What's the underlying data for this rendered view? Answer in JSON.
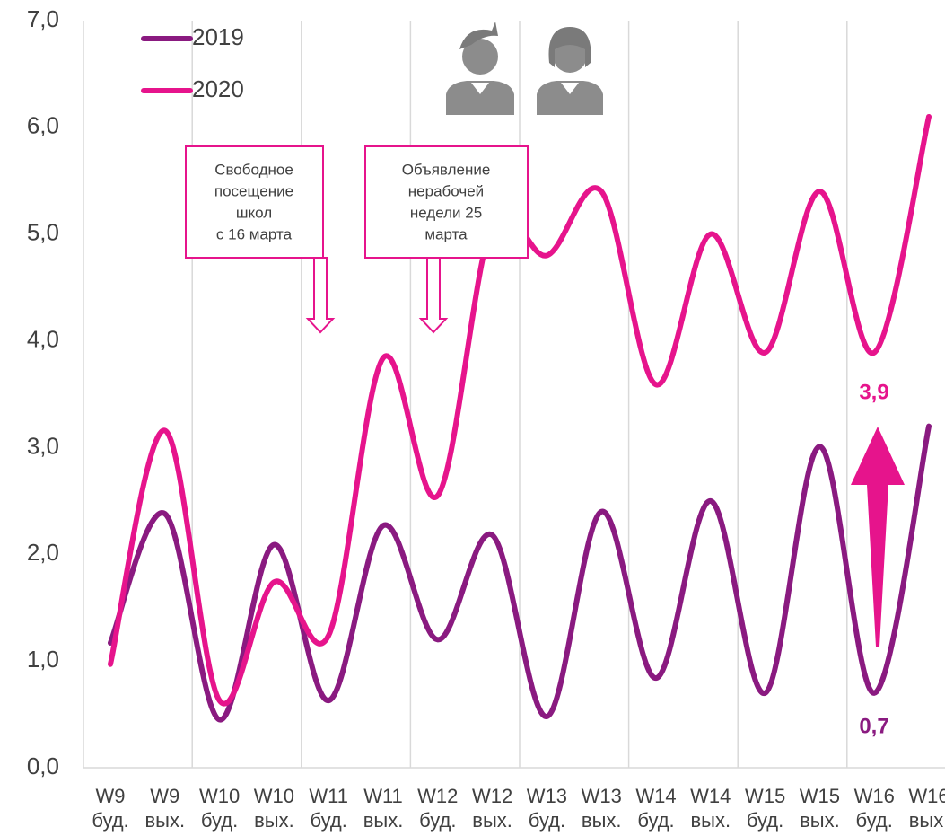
{
  "chart_data": {
    "type": "line",
    "categories": [
      [
        "W9",
        "буд."
      ],
      [
        "W9",
        "вых."
      ],
      [
        "W10",
        "буд."
      ],
      [
        "W10",
        "вых."
      ],
      [
        "W11",
        "буд."
      ],
      [
        "W11",
        "вых."
      ],
      [
        "W12",
        "буд."
      ],
      [
        "W12",
        "вых."
      ],
      [
        "W13",
        "буд."
      ],
      [
        "W13",
        "вых."
      ],
      [
        "W14",
        "буд."
      ],
      [
        "W14",
        "вых."
      ],
      [
        "W15",
        "буд."
      ],
      [
        "W15",
        "вых."
      ],
      [
        "W16",
        "буд."
      ],
      [
        "W16",
        "вых."
      ]
    ],
    "series": [
      {
        "name": "2019",
        "color": "#8a1a80",
        "values": [
          1.17,
          2.38,
          0.45,
          2.09,
          0.63,
          2.27,
          1.2,
          2.18,
          0.48,
          2.4,
          0.84,
          2.5,
          0.7,
          3.01,
          0.7,
          3.2
        ]
      },
      {
        "name": "2020",
        "color": "#e6148c",
        "values": [
          0.97,
          3.16,
          0.63,
          1.74,
          1.24,
          3.84,
          2.55,
          5.1,
          4.8,
          5.4,
          3.59,
          5.0,
          3.89,
          5.4,
          3.89,
          6.1
        ]
      }
    ],
    "ylim": [
      0,
      7
    ],
    "yticks": [
      {
        "value": 0,
        "label": "0,0"
      },
      {
        "value": 1,
        "label": "1,0"
      },
      {
        "value": 2,
        "label": "2,0"
      },
      {
        "value": 3,
        "label": "3,0"
      },
      {
        "value": 4,
        "label": "4,0"
      },
      {
        "value": 5,
        "label": "5,0"
      },
      {
        "value": 6,
        "label": "6,0"
      },
      {
        "value": 7,
        "label": "7,0"
      }
    ],
    "grid": true,
    "legend": "top-left",
    "annotations": [
      {
        "lines": [
          "Свободное",
          "посещение",
          "школ",
          "с 16 марта"
        ]
      },
      {
        "lines": [
          "Объявление",
          "нерабочей",
          "недели 25",
          "марта"
        ]
      },
      {
        "text": "3,9"
      },
      {
        "text": "0,7"
      }
    ]
  }
}
